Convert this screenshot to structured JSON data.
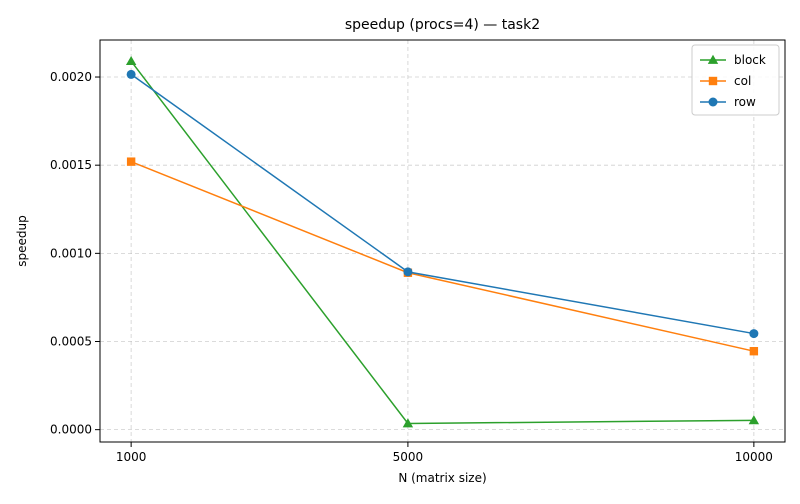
{
  "chart_data": {
    "type": "line",
    "title": "speedup (procs=4) — task2",
    "xlabel": "N (matrix size)",
    "ylabel": "speedup",
    "x": [
      1000,
      5000,
      10000
    ],
    "x_tick_labels": [
      "1000",
      "5000",
      "10000"
    ],
    "xlim": [
      550,
      10450
    ],
    "ylim": [
      -7e-05,
      0.00221
    ],
    "y_ticks": [
      0.0,
      0.0005,
      0.001,
      0.0015,
      0.002
    ],
    "y_tick_labels": [
      "0.0000",
      "0.0005",
      "0.0010",
      "0.0015",
      "0.0020"
    ],
    "grid": true,
    "legend_position": "top-right",
    "series": [
      {
        "name": "block",
        "color": "#2ca02c",
        "marker": "triangle",
        "values": [
          0.00209,
          3.5e-05,
          5.3e-05
        ]
      },
      {
        "name": "col",
        "color": "#ff7f0e",
        "marker": "square",
        "values": [
          0.00152,
          0.00089,
          0.000445
        ]
      },
      {
        "name": "row",
        "color": "#1f77b4",
        "marker": "circle",
        "values": [
          0.002015,
          0.000895,
          0.000545
        ]
      }
    ]
  }
}
